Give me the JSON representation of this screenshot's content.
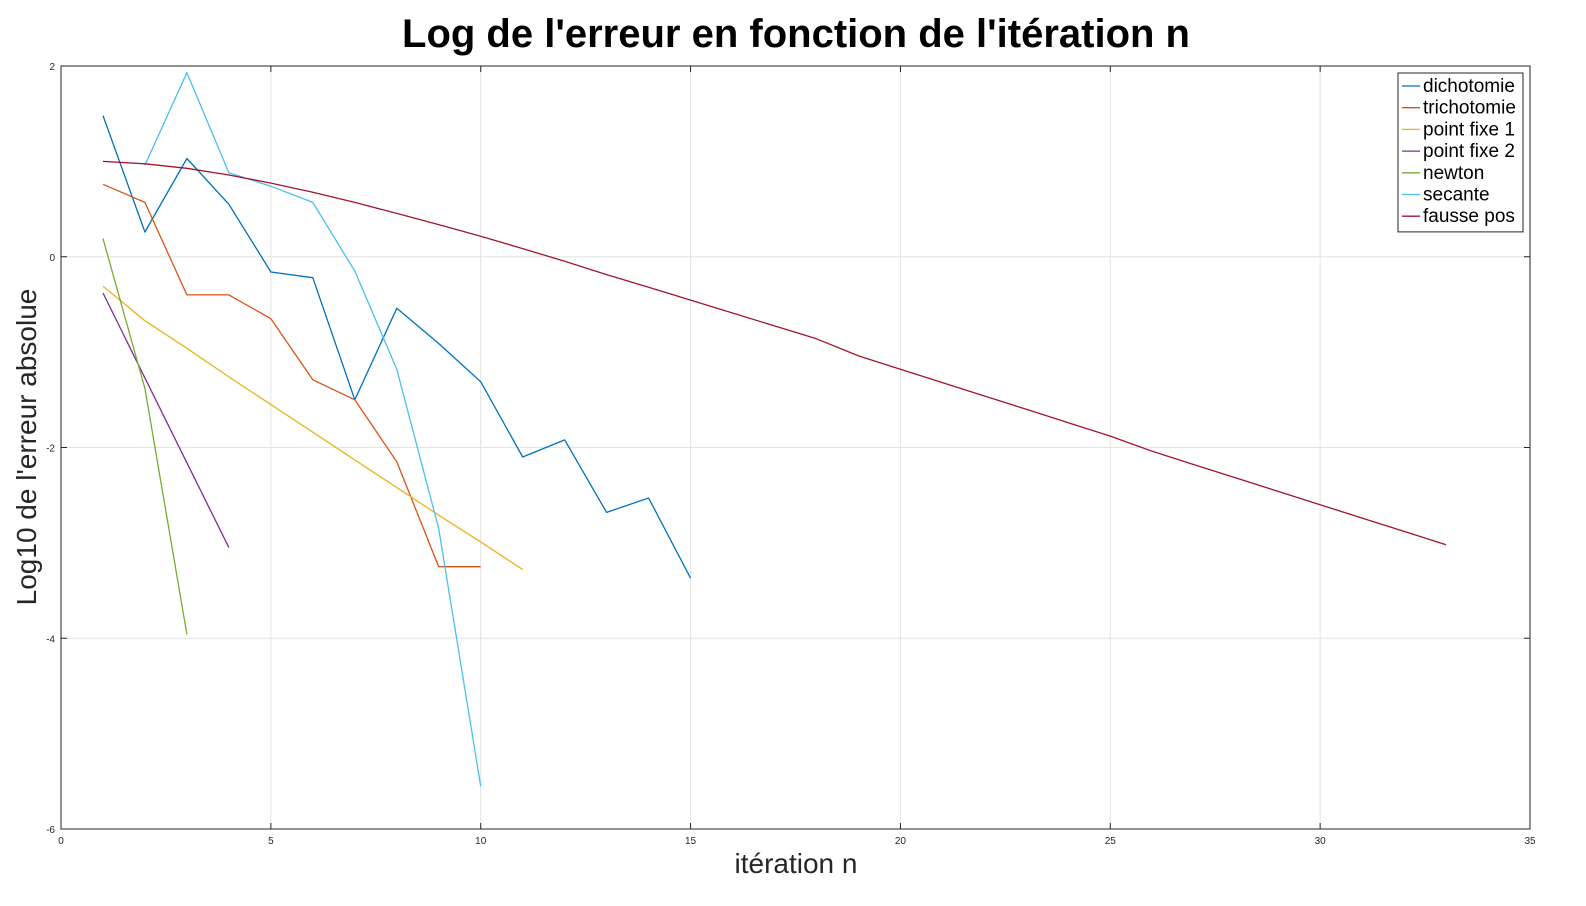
{
  "chart_data": {
    "type": "line",
    "title": "Log de l'erreur en fonction de l'itération n",
    "xlabel": "itération n",
    "ylabel": "Log10 de l'erreur absolue",
    "xlim": [
      0,
      35
    ],
    "ylim": [
      -6,
      2
    ],
    "xticks": [
      0,
      5,
      10,
      15,
      20,
      25,
      30,
      35
    ],
    "yticks": [
      -6,
      -4,
      -2,
      0,
      2
    ],
    "grid": true,
    "legend_position": "top-right",
    "series": [
      {
        "name": "dichotomie",
        "color": "#0072bd",
        "x": [
          1,
          2,
          3,
          4,
          5,
          6,
          7,
          8,
          9,
          10,
          11,
          12,
          13,
          14,
          15
        ],
        "y": [
          1.48,
          0.26,
          1.03,
          0.55,
          -0.16,
          -0.22,
          -1.5,
          -0.54,
          -0.91,
          -1.31,
          -2.1,
          -1.92,
          -2.68,
          -2.53,
          -3.37
        ]
      },
      {
        "name": "trichotomie",
        "color": "#d95319",
        "x": [
          1,
          2,
          3,
          4,
          5,
          6,
          7,
          8,
          9,
          10
        ],
        "y": [
          0.76,
          0.57,
          -0.4,
          -0.4,
          -0.65,
          -1.29,
          -1.5,
          -2.15,
          -3.25,
          -3.25
        ]
      },
      {
        "name": "point fixe 1",
        "color": "#edb120",
        "x": [
          1,
          2,
          3,
          4,
          5,
          6,
          7,
          8,
          9,
          10,
          11
        ],
        "y": [
          -0.31,
          -0.67,
          -0.96,
          -1.26,
          -1.55,
          -1.84,
          -2.13,
          -2.42,
          -2.71,
          -2.99,
          -3.28
        ]
      },
      {
        "name": "point fixe 2",
        "color": "#7e2f8e",
        "x": [
          1,
          2,
          3,
          4
        ],
        "y": [
          -0.38,
          -1.27,
          -2.16,
          -3.05
        ]
      },
      {
        "name": "newton",
        "color": "#77ac30",
        "x": [
          1,
          2,
          3
        ],
        "y": [
          0.19,
          -1.38,
          -3.96
        ]
      },
      {
        "name": "secante",
        "color": "#4dbeee",
        "x": [
          2,
          3,
          4,
          5,
          6,
          7,
          8,
          9,
          10
        ],
        "y": [
          0.96,
          1.93,
          0.88,
          0.74,
          0.57,
          -0.15,
          -1.18,
          -2.85,
          -5.55
        ]
      },
      {
        "name": "fausse pos",
        "color": "#a2142f",
        "x": [
          1,
          2,
          3,
          4,
          5,
          6,
          7,
          8,
          9,
          10,
          11,
          12,
          13,
          14,
          15,
          16,
          17,
          18,
          19,
          20,
          21,
          22,
          23,
          24,
          25,
          26,
          27,
          28,
          29,
          30,
          31,
          32,
          33
        ],
        "y": [
          1.0,
          0.975,
          0.927,
          0.857,
          0.772,
          0.676,
          0.57,
          0.455,
          0.337,
          0.214,
          0.085,
          -0.048,
          -0.187,
          -0.32,
          -0.455,
          -0.59,
          -0.725,
          -0.86,
          -1.04,
          -1.18,
          -1.32,
          -1.46,
          -1.6,
          -1.74,
          -1.88,
          -2.04,
          -2.18,
          -2.32,
          -2.46,
          -2.6,
          -2.74,
          -2.88,
          -3.02
        ]
      }
    ]
  }
}
